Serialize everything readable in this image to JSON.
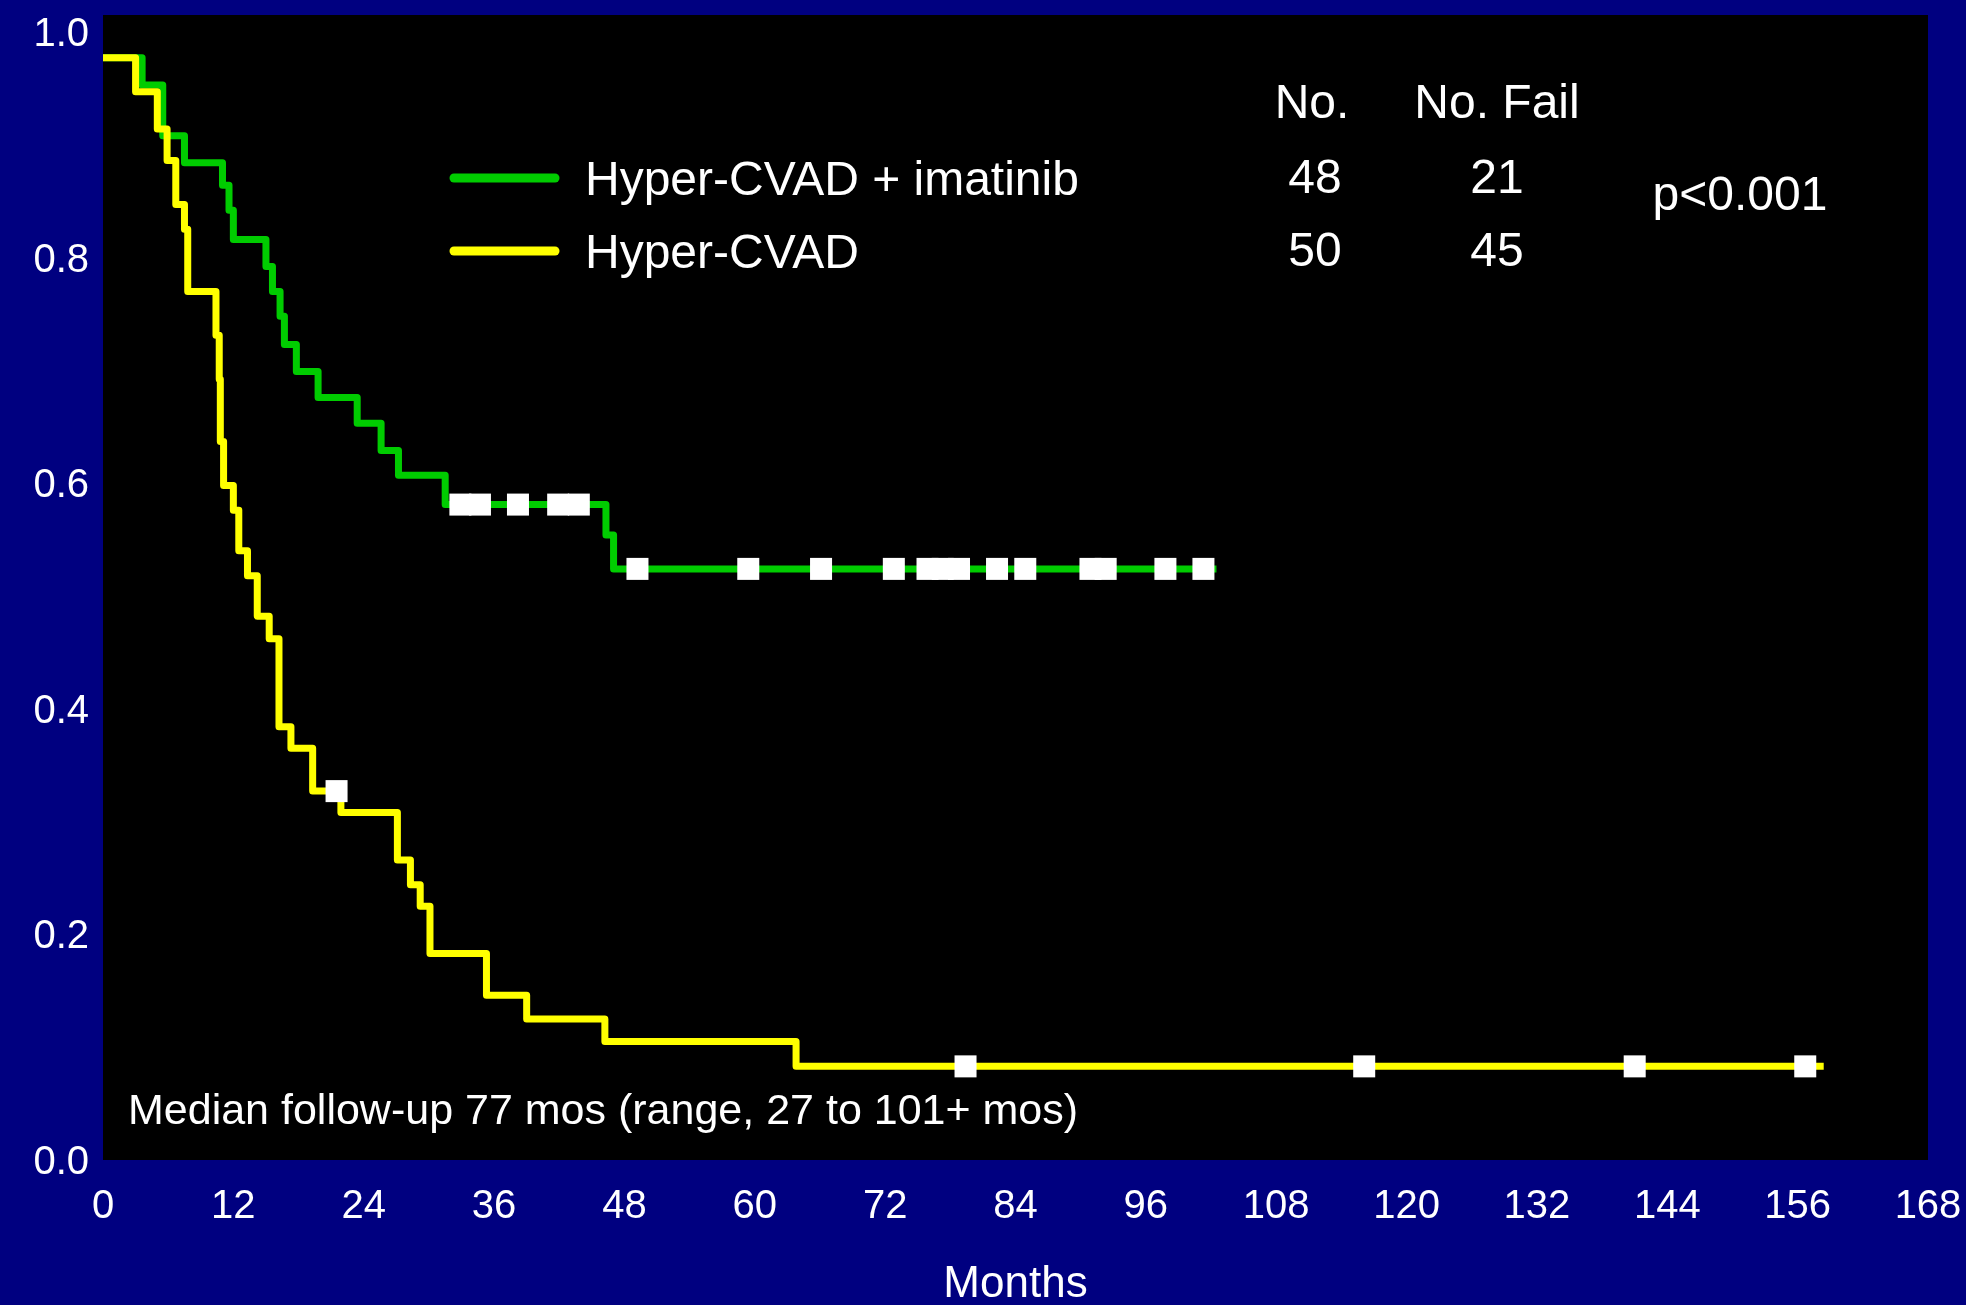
{
  "chart_data": {
    "type": "step",
    "xlabel": "Months",
    "xlim": [
      0,
      168
    ],
    "xticks": [
      0,
      12,
      24,
      36,
      48,
      60,
      72,
      84,
      96,
      108,
      120,
      132,
      144,
      156,
      168
    ],
    "ylim": [
      0,
      1.015
    ],
    "yticks": [
      {
        "value": 0,
        "label": "0.0"
      },
      {
        "value": 0.2,
        "label": "0.2"
      },
      {
        "value": 0.4,
        "label": "0.4"
      },
      {
        "value": 0.6,
        "label": "0.6"
      },
      {
        "value": 0.8,
        "label": "0.8"
      },
      {
        "value": 1,
        "label": "1.0"
      }
    ],
    "grid": false,
    "legend": "top",
    "marker": "none",
    "line_style": "solid",
    "series": [
      {
        "name": "Hyper-CVAD + imatinib",
        "color": "#00cc00",
        "x": [
          0,
          3.6,
          5.5,
          7.5,
          11,
          11.6,
          12,
          15,
          15.6,
          16.3,
          16.7,
          17.8,
          19.8,
          23.4,
          25.6,
          27.2,
          31.5,
          46.3,
          47,
          102.5
        ],
        "values": [
          0.977,
          0.953,
          0.908,
          0.884,
          0.864,
          0.842,
          0.816,
          0.792,
          0.77,
          0.748,
          0.723,
          0.699,
          0.676,
          0.653,
          0.629,
          0.607,
          0.581,
          0.554,
          0.524,
          0.524
        ]
      },
      {
        "name": "Hyper-CVAD",
        "color": "#ffff00",
        "x": [
          0,
          3,
          5,
          5.9,
          6.7,
          7.5,
          7.8,
          10.4,
          10.7,
          10.8,
          11.1,
          12,
          12.5,
          13.3,
          14.2,
          15.3,
          16.2,
          17.3,
          19.3,
          21.9,
          27.1,
          28.3,
          29.2,
          30.1,
          35.3,
          39,
          46.2,
          63.8,
          158.4
        ],
        "values": [
          0.977,
          0.947,
          0.914,
          0.886,
          0.847,
          0.825,
          0.77,
          0.731,
          0.692,
          0.637,
          0.598,
          0.576,
          0.54,
          0.518,
          0.482,
          0.462,
          0.384,
          0.365,
          0.327,
          0.308,
          0.266,
          0.244,
          0.225,
          0.183,
          0.146,
          0.125,
          0.105,
          0.083,
          0.083
        ]
      },
      {
        "color": "#ffffff",
        "type": "scatter",
        "marker": "square",
        "x": [
          32.9,
          34.7,
          38.2,
          41.9,
          43.8,
          49.2,
          59.4,
          66.1,
          72.8,
          75.9,
          77.3,
          78.8,
          82.3,
          84.9,
          90.9,
          92.3,
          97.8,
          101.3
        ],
        "values": [
          0.581,
          0.581,
          0.581,
          0.581,
          0.581,
          0.524,
          0.524,
          0.524,
          0.524,
          0.524,
          0.524,
          0.524,
          0.524,
          0.524,
          0.524,
          0.524,
          0.524,
          0.524
        ]
      },
      {
        "color": "#ffffff",
        "type": "scatter",
        "marker": "square",
        "x": [
          21.5,
          79.4,
          116.1,
          141,
          156.7
        ],
        "values": [
          0.327,
          0.083,
          0.083,
          0.083,
          0.083
        ]
      }
    ],
    "annotations": [
      "No.",
      "No. Fail",
      "48",
      "21",
      "50",
      "45",
      "p<0.001",
      "Median follow-up 77 mos (range, 27 to 101+ mos)"
    ]
  }
}
